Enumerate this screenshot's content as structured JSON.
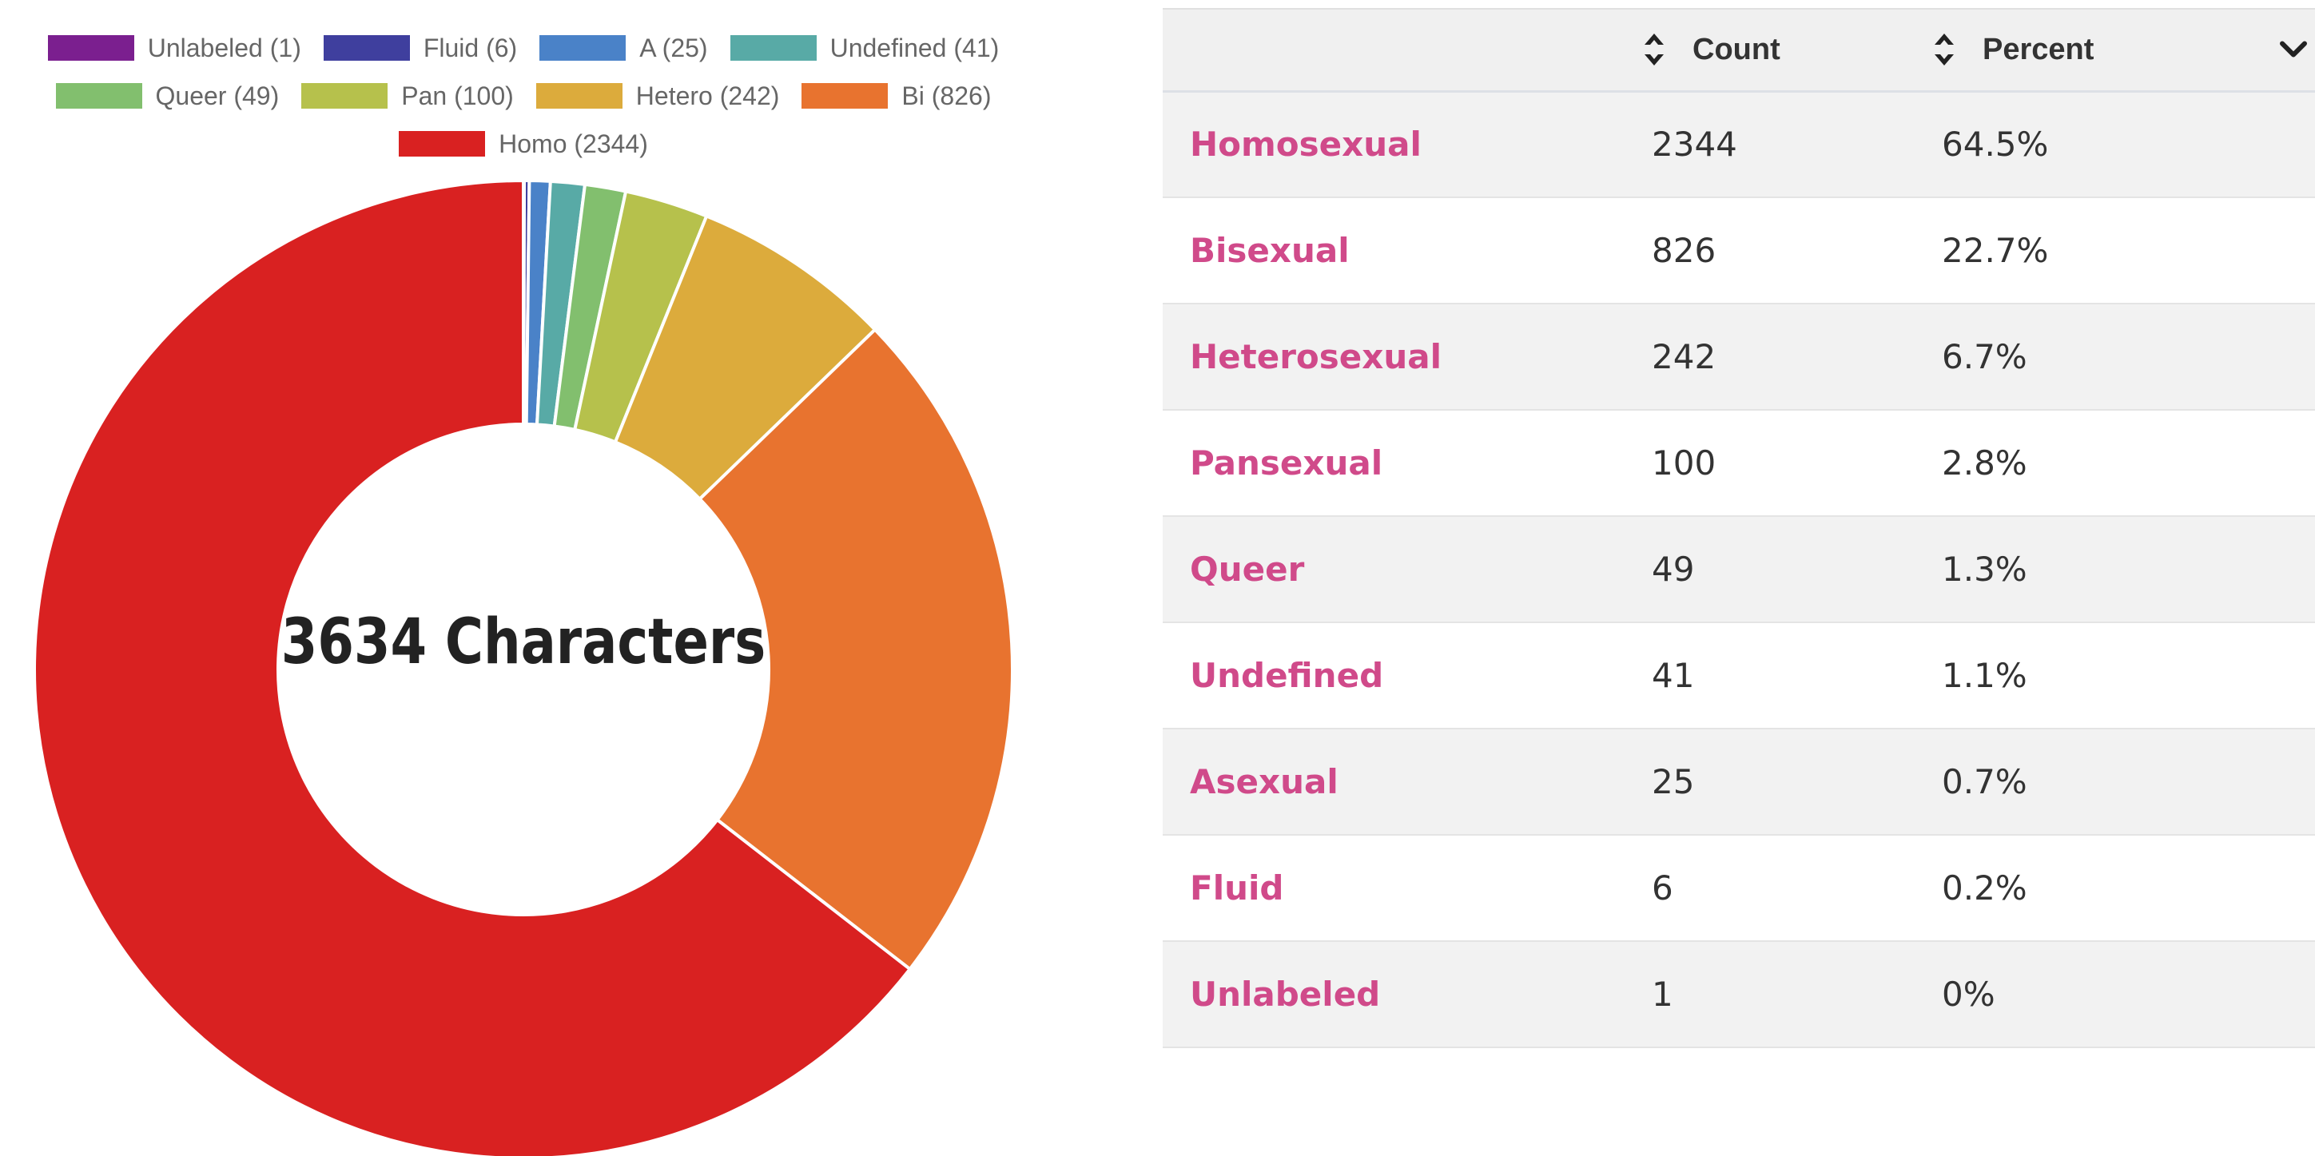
{
  "chart_data": {
    "type": "pie",
    "center_label": "3634 Characters",
    "legend": [
      [
        "Unlabeled (1)",
        "Fluid (6)",
        "A (25)",
        "Undefined (41)"
      ],
      [
        "Queer (49)",
        "Pan (100)",
        "Hetero (242)",
        "Bi (826)"
      ],
      [
        "Homo (2344)"
      ]
    ],
    "slices": [
      {
        "label": "Unlabeled",
        "value": 1,
        "color": "#7b1f8f"
      },
      {
        "label": "Fluid",
        "value": 6,
        "color": "#3f3f9e"
      },
      {
        "label": "A",
        "value": 25,
        "color": "#4a82c8"
      },
      {
        "label": "Undefined",
        "value": 41,
        "color": "#58aaa6"
      },
      {
        "label": "Queer",
        "value": 49,
        "color": "#82bf6e"
      },
      {
        "label": "Pan",
        "value": 100,
        "color": "#b6c14c"
      },
      {
        "label": "Hetero",
        "value": 242,
        "color": "#dcab3c"
      },
      {
        "label": "Bi",
        "value": 826,
        "color": "#e8732f"
      },
      {
        "label": "Homo",
        "value": 2344,
        "color": "#d92121"
      }
    ]
  },
  "table": {
    "headers": {
      "count": "Count",
      "percent": "Percent"
    },
    "rows": [
      {
        "name": "Homosexual",
        "count": "2344",
        "percent": "64.5%"
      },
      {
        "name": "Bisexual",
        "count": "826",
        "percent": "22.7%"
      },
      {
        "name": "Heterosexual",
        "count": "242",
        "percent": "6.7%"
      },
      {
        "name": "Pansexual",
        "count": "100",
        "percent": "2.8%"
      },
      {
        "name": "Queer",
        "count": "49",
        "percent": "1.3%"
      },
      {
        "name": "Undefined",
        "count": "41",
        "percent": "1.1%"
      },
      {
        "name": "Asexual",
        "count": "25",
        "percent": "0.7%"
      },
      {
        "name": "Fluid",
        "count": "6",
        "percent": "0.2%"
      },
      {
        "name": "Unlabeled",
        "count": "1",
        "percent": "0%"
      }
    ],
    "link_color": "#d04a8a"
  }
}
